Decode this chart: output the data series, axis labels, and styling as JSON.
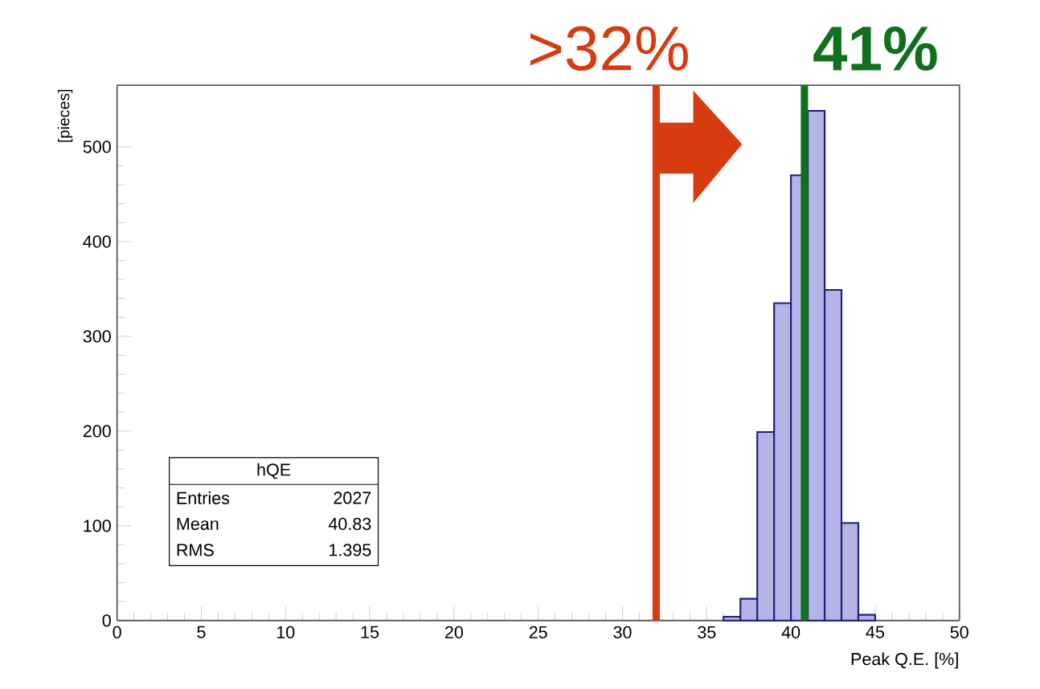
{
  "chart_data": {
    "type": "histogram",
    "xlabel": "Peak Q.E. [%]",
    "ylabel": "[pieces]",
    "bins": [
      36,
      37,
      38,
      39,
      40,
      41,
      42,
      43,
      44,
      45
    ],
    "values": [
      4,
      23,
      199,
      335,
      470,
      538,
      349,
      103,
      6
    ],
    "color": "#b4b4e6",
    "xlim": [
      0,
      50
    ],
    "ylim": [
      0,
      565
    ],
    "xticks": [
      0,
      5,
      10,
      15,
      20,
      25,
      30,
      35,
      40,
      45,
      50
    ],
    "yticks": [
      0,
      100,
      200,
      300,
      400,
      500
    ],
    "ref_lines": [
      {
        "axis": "x",
        "value": 32,
        "label": ">32%",
        "color": "#d63c0f"
      },
      {
        "axis": "x",
        "value": 40.8,
        "label": "41%",
        "color": "#10701e"
      }
    ],
    "annotations": [
      "hQE",
      "Entries",
      "2027",
      "Mean",
      "40.83",
      "RMS",
      "1.395"
    ]
  }
}
